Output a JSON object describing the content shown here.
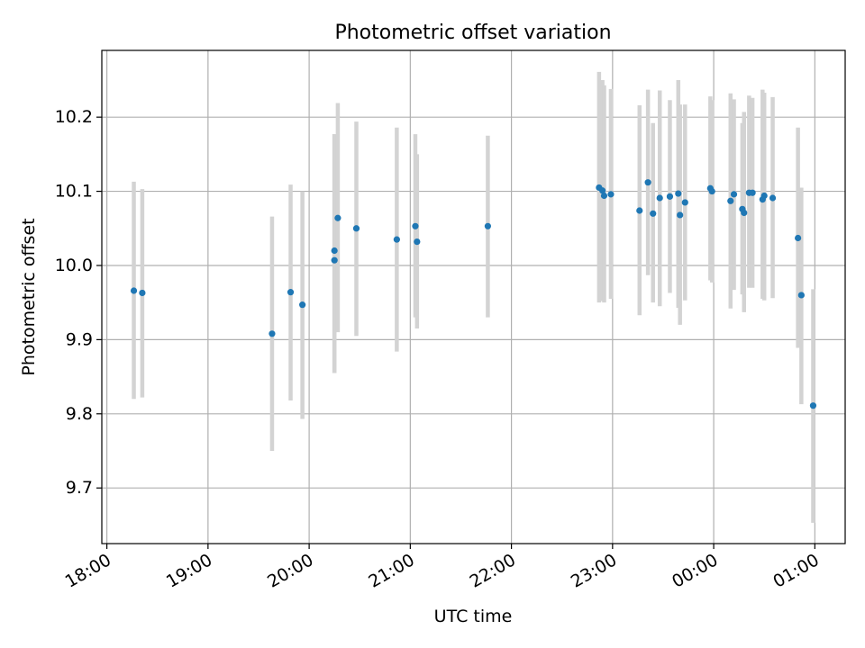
{
  "chart_data": {
    "type": "scatter",
    "title": "Photometric offset variation",
    "xlabel": "UTC time",
    "ylabel": "Photometric offset",
    "x_tick_labels": [
      "18:00",
      "19:00",
      "20:00",
      "21:00",
      "22:00",
      "23:00",
      "00:00",
      "01:00"
    ],
    "y_tick_labels": [
      "9.7",
      "9.8",
      "9.9",
      "10.0",
      "10.1",
      "10.2"
    ],
    "y_ticks": [
      9.7,
      9.8,
      9.9,
      10.0,
      10.1,
      10.2
    ],
    "xlim": [
      "17:57",
      "01:18"
    ],
    "ylim": [
      9.625,
      10.29
    ],
    "grid": true,
    "colors": {
      "point": "#1f77b4",
      "errorbar": "#d3d3d3",
      "grid": "#b0b0b0"
    },
    "series": [
      {
        "points": [
          {
            "x": "18:16",
            "y": 9.966,
            "ylow": 9.82,
            "yhigh": 10.113
          },
          {
            "x": "18:21",
            "y": 9.963,
            "ylow": 9.822,
            "yhigh": 10.103
          },
          {
            "x": "19:38",
            "y": 9.908,
            "ylow": 9.75,
            "yhigh": 10.066
          },
          {
            "x": "19:49",
            "y": 9.964,
            "ylow": 9.818,
            "yhigh": 10.109
          },
          {
            "x": "19:56",
            "y": 9.947,
            "ylow": 9.793,
            "yhigh": 10.1
          },
          {
            "x": "20:15",
            "y": 10.02,
            "ylow": 9.855,
            "yhigh": 10.177
          },
          {
            "x": "20:15",
            "y": 10.007,
            "ylow": 9.855,
            "yhigh": 10.177
          },
          {
            "x": "20:17",
            "y": 10.064,
            "ylow": 9.91,
            "yhigh": 10.219
          },
          {
            "x": "20:28",
            "y": 10.05,
            "ylow": 9.905,
            "yhigh": 10.194
          },
          {
            "x": "20:52",
            "y": 10.035,
            "ylow": 9.884,
            "yhigh": 10.186
          },
          {
            "x": "21:03",
            "y": 10.053,
            "ylow": 9.93,
            "yhigh": 10.177
          },
          {
            "x": "21:04",
            "y": 10.032,
            "ylow": 9.915,
            "yhigh": 10.15
          },
          {
            "x": "21:46",
            "y": 10.053,
            "ylow": 9.93,
            "yhigh": 10.175
          },
          {
            "x": "22:52",
            "y": 10.105,
            "ylow": 9.95,
            "yhigh": 10.261
          },
          {
            "x": "22:54",
            "y": 10.101,
            "ylow": 9.952,
            "yhigh": 10.25
          },
          {
            "x": "22:55",
            "y": 10.094,
            "ylow": 9.95,
            "yhigh": 10.243
          },
          {
            "x": "22:59",
            "y": 10.096,
            "ylow": 9.955,
            "yhigh": 10.238
          },
          {
            "x": "23:16",
            "y": 10.074,
            "ylow": 9.933,
            "yhigh": 10.216
          },
          {
            "x": "23:21",
            "y": 10.112,
            "ylow": 9.987,
            "yhigh": 10.237
          },
          {
            "x": "23:24",
            "y": 10.07,
            "ylow": 9.95,
            "yhigh": 10.192
          },
          {
            "x": "23:28",
            "y": 10.091,
            "ylow": 9.945,
            "yhigh": 10.236
          },
          {
            "x": "23:34",
            "y": 10.093,
            "ylow": 9.963,
            "yhigh": 10.223
          },
          {
            "x": "23:39",
            "y": 10.097,
            "ylow": 9.943,
            "yhigh": 10.25
          },
          {
            "x": "23:40",
            "y": 10.068,
            "ylow": 9.92,
            "yhigh": 10.217
          },
          {
            "x": "23:43",
            "y": 10.085,
            "ylow": 9.953,
            "yhigh": 10.217
          },
          {
            "x": "23:58",
            "y": 10.104,
            "ylow": 9.98,
            "yhigh": 10.228
          },
          {
            "x": "23:59",
            "y": 10.1,
            "ylow": 9.977,
            "yhigh": 10.223
          },
          {
            "x": "00:10",
            "y": 10.087,
            "ylow": 9.942,
            "yhigh": 10.232
          },
          {
            "x": "00:12",
            "y": 10.096,
            "ylow": 9.967,
            "yhigh": 10.224
          },
          {
            "x": "00:17",
            "y": 10.076,
            "ylow": 9.961,
            "yhigh": 10.192
          },
          {
            "x": "00:18",
            "y": 10.071,
            "ylow": 9.937,
            "yhigh": 10.207
          },
          {
            "x": "00:21",
            "y": 10.098,
            "ylow": 9.97,
            "yhigh": 10.229
          },
          {
            "x": "00:23",
            "y": 10.098,
            "ylow": 9.97,
            "yhigh": 10.226
          },
          {
            "x": "00:29",
            "y": 10.089,
            "ylow": 9.955,
            "yhigh": 10.237
          },
          {
            "x": "00:30",
            "y": 10.094,
            "ylow": 9.953,
            "yhigh": 10.233
          },
          {
            "x": "00:35",
            "y": 10.091,
            "ylow": 9.956,
            "yhigh": 10.227
          },
          {
            "x": "00:50",
            "y": 10.037,
            "ylow": 9.889,
            "yhigh": 10.186
          },
          {
            "x": "00:52",
            "y": 9.96,
            "ylow": 9.813,
            "yhigh": 10.105
          },
          {
            "x": "00:59",
            "y": 9.811,
            "ylow": 9.653,
            "yhigh": 9.968
          }
        ]
      }
    ]
  }
}
